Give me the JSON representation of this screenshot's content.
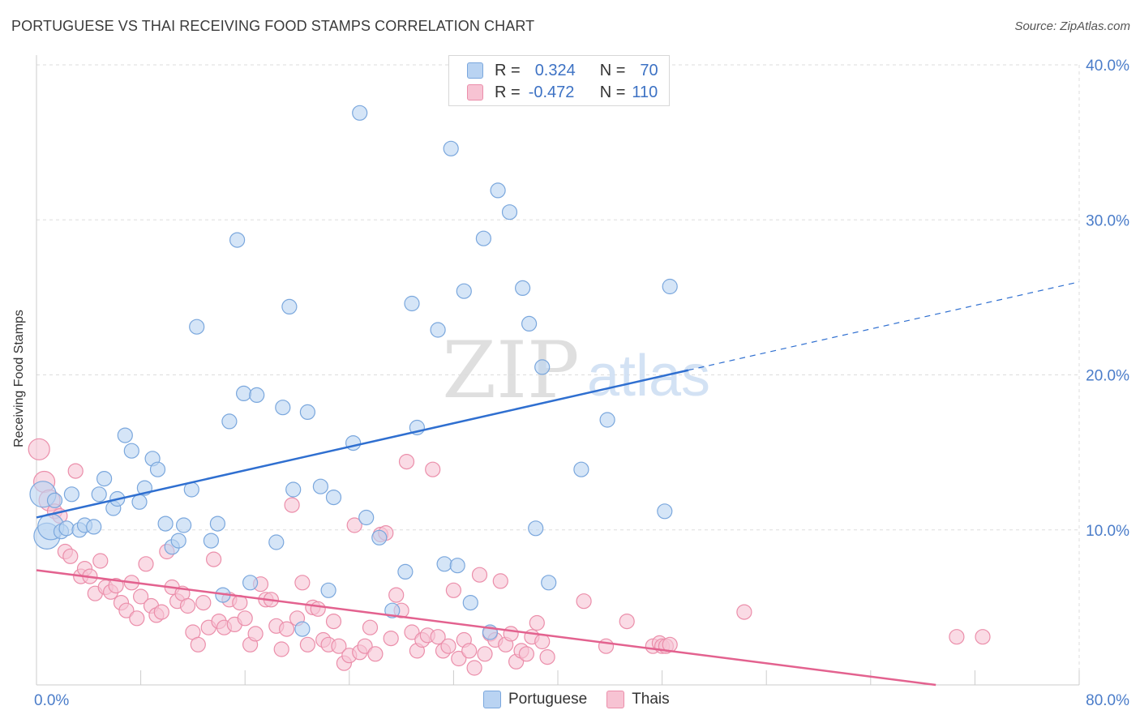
{
  "header": {
    "title": "PORTUGUESE VS THAI RECEIVING FOOD STAMPS CORRELATION CHART",
    "source": "Source: ZipAtlas.com"
  },
  "watermark": {
    "zip": "ZIP",
    "atlas": "atlas"
  },
  "legend_top": {
    "rows": [
      {
        "r_label": "R =",
        "r_value": "0.324",
        "n_label": "N =",
        "n_value": "70"
      },
      {
        "r_label": "R =",
        "r_value": "-0.472",
        "n_label": "N =",
        "n_value": "110"
      }
    ]
  },
  "legend_bottom": {
    "items": [
      "Portuguese",
      "Thais"
    ]
  },
  "colors": {
    "blue_fill": "#b9d3f2",
    "blue_stroke": "#7aa7dd",
    "blue_line": "#2f6fd0",
    "pink_fill": "#f7c3d3",
    "pink_stroke": "#eb8eaa",
    "pink_line": "#e3628f",
    "tick_label": "#4a7cc9",
    "grid": "#dddddd"
  },
  "chart_data": {
    "type": "scatter",
    "title": "PORTUGUESE VS THAI RECEIVING FOOD STAMPS CORRELATION CHART",
    "xlabel": "",
    "ylabel": "Receiving Food Stamps",
    "xlim": [
      0,
      80
    ],
    "ylim": [
      0,
      40
    ],
    "x_tick_labels": [
      "0.0%",
      "80.0%"
    ],
    "y_ticks": [
      10,
      20,
      30,
      40
    ],
    "y_tick_labels": [
      "10.0%",
      "20.0%",
      "30.0%",
      "40.0%"
    ],
    "grid": true,
    "legend_position": "top-center",
    "series": [
      {
        "name": "Portuguese",
        "r": 0.324,
        "n": 70,
        "trend": {
          "x0": 0,
          "y0": 10.8,
          "x1": 50,
          "y1": 20.3,
          "dashed_to_x": 80,
          "dashed_to_y": 26.0
        },
        "points": [
          [
            0.5,
            12.3
          ],
          [
            0.8,
            9.6
          ],
          [
            1.1,
            10.2
          ],
          [
            1.4,
            11.9
          ],
          [
            1.9,
            9.9
          ],
          [
            2.3,
            10.1
          ],
          [
            2.7,
            12.3
          ],
          [
            3.3,
            10.0
          ],
          [
            3.7,
            10.3
          ],
          [
            4.4,
            10.2
          ],
          [
            4.8,
            12.3
          ],
          [
            5.2,
            13.3
          ],
          [
            5.9,
            11.4
          ],
          [
            6.2,
            12.0
          ],
          [
            6.8,
            16.1
          ],
          [
            7.3,
            15.1
          ],
          [
            7.9,
            11.8
          ],
          [
            8.3,
            12.7
          ],
          [
            8.9,
            14.6
          ],
          [
            9.3,
            13.9
          ],
          [
            9.9,
            10.4
          ],
          [
            10.4,
            8.9
          ],
          [
            10.9,
            9.3
          ],
          [
            11.3,
            10.3
          ],
          [
            11.9,
            12.6
          ],
          [
            12.3,
            23.1
          ],
          [
            13.4,
            9.3
          ],
          [
            13.9,
            10.4
          ],
          [
            14.3,
            5.8
          ],
          [
            14.8,
            17.0
          ],
          [
            15.4,
            28.7
          ],
          [
            15.9,
            18.8
          ],
          [
            16.4,
            6.6
          ],
          [
            16.9,
            18.7
          ],
          [
            18.4,
            9.2
          ],
          [
            18.9,
            17.9
          ],
          [
            19.4,
            24.4
          ],
          [
            19.7,
            12.6
          ],
          [
            20.4,
            3.6
          ],
          [
            20.8,
            17.6
          ],
          [
            21.8,
            12.8
          ],
          [
            22.4,
            6.1
          ],
          [
            22.8,
            12.1
          ],
          [
            24.3,
            15.6
          ],
          [
            24.8,
            36.9
          ],
          [
            25.3,
            10.8
          ],
          [
            26.3,
            9.5
          ],
          [
            27.3,
            4.8
          ],
          [
            28.3,
            7.3
          ],
          [
            28.8,
            24.6
          ],
          [
            29.2,
            16.6
          ],
          [
            30.8,
            22.9
          ],
          [
            31.3,
            7.8
          ],
          [
            31.8,
            34.6
          ],
          [
            32.3,
            7.7
          ],
          [
            32.8,
            25.4
          ],
          [
            33.3,
            5.3
          ],
          [
            34.3,
            28.8
          ],
          [
            34.8,
            3.4
          ],
          [
            35.4,
            31.9
          ],
          [
            36.3,
            30.5
          ],
          [
            37.3,
            25.6
          ],
          [
            37.8,
            23.3
          ],
          [
            38.3,
            10.1
          ],
          [
            38.8,
            20.5
          ],
          [
            39.3,
            6.6
          ],
          [
            41.8,
            13.9
          ],
          [
            43.8,
            17.1
          ],
          [
            48.2,
            11.2
          ],
          [
            48.6,
            25.7
          ]
        ]
      },
      {
        "name": "Thais",
        "r": -0.472,
        "n": 110,
        "trend": {
          "x0": 0,
          "y0": 7.4,
          "x1": 69,
          "y1": 0
        },
        "points": [
          [
            0.2,
            15.2
          ],
          [
            0.6,
            13.1
          ],
          [
            1.0,
            11.9
          ],
          [
            1.4,
            11.2
          ],
          [
            1.8,
            10.9
          ],
          [
            2.2,
            8.6
          ],
          [
            2.6,
            8.3
          ],
          [
            3.0,
            13.8
          ],
          [
            3.4,
            7.0
          ],
          [
            3.7,
            7.5
          ],
          [
            4.1,
            7.0
          ],
          [
            4.5,
            5.9
          ],
          [
            4.9,
            8.0
          ],
          [
            5.3,
            6.3
          ],
          [
            5.7,
            6.0
          ],
          [
            6.1,
            6.4
          ],
          [
            6.5,
            5.3
          ],
          [
            6.9,
            4.8
          ],
          [
            7.3,
            6.6
          ],
          [
            7.7,
            4.3
          ],
          [
            8.0,
            5.7
          ],
          [
            8.4,
            7.8
          ],
          [
            8.8,
            5.1
          ],
          [
            9.2,
            4.5
          ],
          [
            9.6,
            4.7
          ],
          [
            10.0,
            8.6
          ],
          [
            10.4,
            6.3
          ],
          [
            10.8,
            5.4
          ],
          [
            11.2,
            5.9
          ],
          [
            11.6,
            5.1
          ],
          [
            12.0,
            3.4
          ],
          [
            12.4,
            2.6
          ],
          [
            12.8,
            5.3
          ],
          [
            13.2,
            3.7
          ],
          [
            13.6,
            8.1
          ],
          [
            14.0,
            4.1
          ],
          [
            14.4,
            3.7
          ],
          [
            14.8,
            5.5
          ],
          [
            15.2,
            3.9
          ],
          [
            15.6,
            5.3
          ],
          [
            16.0,
            4.3
          ],
          [
            16.4,
            2.6
          ],
          [
            16.8,
            3.3
          ],
          [
            17.2,
            6.5
          ],
          [
            17.6,
            5.5
          ],
          [
            18.0,
            5.5
          ],
          [
            18.4,
            3.8
          ],
          [
            18.8,
            2.3
          ],
          [
            19.2,
            3.6
          ],
          [
            19.6,
            11.6
          ],
          [
            20.0,
            4.3
          ],
          [
            20.4,
            6.6
          ],
          [
            20.8,
            2.6
          ],
          [
            21.2,
            5.0
          ],
          [
            21.6,
            4.9
          ],
          [
            22.0,
            2.9
          ],
          [
            22.4,
            2.6
          ],
          [
            22.8,
            4.1
          ],
          [
            23.2,
            2.5
          ],
          [
            23.6,
            1.4
          ],
          [
            24.0,
            1.9
          ],
          [
            24.4,
            10.3
          ],
          [
            24.8,
            2.1
          ],
          [
            25.2,
            2.5
          ],
          [
            25.6,
            3.7
          ],
          [
            26.0,
            2.0
          ],
          [
            26.4,
            9.7
          ],
          [
            26.8,
            9.8
          ],
          [
            27.2,
            3.0
          ],
          [
            27.6,
            5.8
          ],
          [
            28.0,
            4.8
          ],
          [
            28.4,
            14.4
          ],
          [
            28.8,
            3.4
          ],
          [
            29.2,
            2.2
          ],
          [
            29.6,
            2.9
          ],
          [
            30.0,
            3.2
          ],
          [
            30.4,
            13.9
          ],
          [
            30.8,
            3.1
          ],
          [
            31.2,
            2.2
          ],
          [
            31.6,
            2.5
          ],
          [
            32.0,
            6.1
          ],
          [
            32.4,
            1.7
          ],
          [
            32.8,
            2.9
          ],
          [
            33.2,
            2.2
          ],
          [
            33.6,
            1.1
          ],
          [
            34.0,
            7.1
          ],
          [
            34.4,
            2.0
          ],
          [
            34.8,
            3.3
          ],
          [
            35.2,
            2.9
          ],
          [
            35.6,
            6.7
          ],
          [
            36.0,
            2.6
          ],
          [
            36.4,
            3.3
          ],
          [
            36.8,
            1.5
          ],
          [
            37.2,
            2.2
          ],
          [
            37.6,
            2.0
          ],
          [
            38.0,
            3.1
          ],
          [
            38.4,
            4.0
          ],
          [
            38.8,
            2.8
          ],
          [
            39.2,
            1.8
          ],
          [
            42.0,
            5.4
          ],
          [
            43.7,
            2.5
          ],
          [
            45.3,
            4.1
          ],
          [
            47.3,
            2.5
          ],
          [
            47.8,
            2.7
          ],
          [
            48.0,
            2.5
          ],
          [
            48.3,
            2.5
          ],
          [
            48.6,
            2.6
          ],
          [
            54.3,
            4.7
          ],
          [
            70.6,
            3.1
          ],
          [
            72.6,
            3.1
          ]
        ]
      }
    ]
  }
}
